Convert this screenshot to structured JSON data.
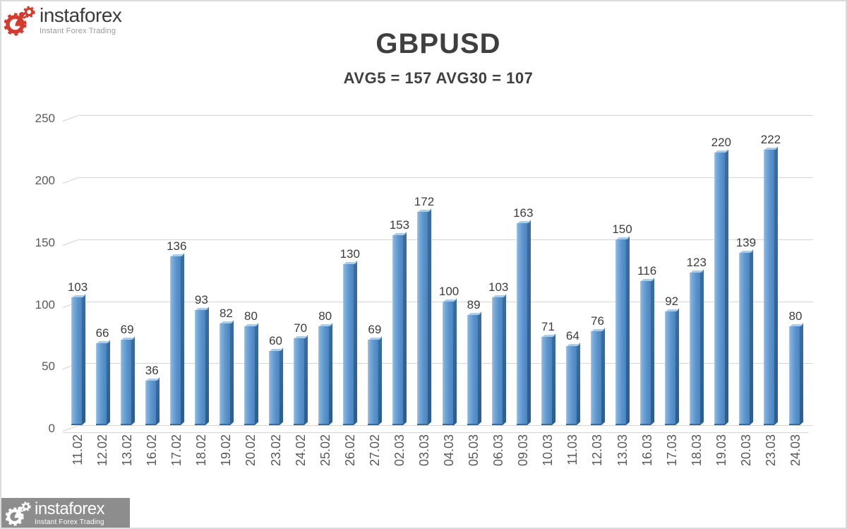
{
  "brand": {
    "top": {
      "name": "instaforex",
      "tagline": "Instant Forex Trading"
    },
    "bottom": {
      "name": "instaforex",
      "tagline": "Instant Forex Trading"
    }
  },
  "chart_data": {
    "type": "bar",
    "title": "GBPUSD",
    "subtitle": "AVG5 = 157 AVG30 = 107",
    "avg5": 157,
    "avg30": 107,
    "categories": [
      "11.02",
      "12.02",
      "13.02",
      "16.02",
      "17.02",
      "18.02",
      "19.02",
      "20.02",
      "23.02",
      "24.02",
      "25.02",
      "26.02",
      "27.02",
      "02.03",
      "03.03",
      "04.03",
      "05.03",
      "06.03",
      "09.03",
      "10.03",
      "11.03",
      "12.03",
      "13.03",
      "16.03",
      "17.03",
      "18.03",
      "19.03",
      "20.03",
      "23.03",
      "24.03"
    ],
    "values": [
      103,
      66,
      69,
      36,
      136,
      93,
      82,
      80,
      60,
      70,
      80,
      130,
      69,
      153,
      172,
      100,
      89,
      103,
      163,
      71,
      64,
      76,
      150,
      116,
      92,
      123,
      220,
      139,
      222,
      80
    ],
    "xlabel": "",
    "ylabel": "",
    "ylim": [
      0,
      250
    ],
    "yticks": [
      0,
      50,
      100,
      150,
      200,
      250
    ],
    "grid": true,
    "legend": "none",
    "bar_labels_shown": true
  },
  "colors": {
    "bar_face_highlight": "#a3c9ea",
    "bar_face_light": "#7fb0dc",
    "bar_face": "#5e96cd",
    "bar_face_dark": "#4a85c0",
    "bar_side_top": "#3a6da1",
    "bar_side_dark": "#2c5d90",
    "bar_top_bevel": "#a9cdea",
    "bar_bottom_edge": "#35689c",
    "grid_line": "#d7d4d1",
    "axis_text": "#595959",
    "value_text": "#3c3c3c",
    "title_text": "#3f3f3f",
    "logo_red": "#d63a2e",
    "logo_dark_text": "#3b3b3b",
    "logo_gray_text": "#9a9a9a",
    "logo_block_bg": "#8d8d8d",
    "logo_block_text": "#ffffff"
  }
}
